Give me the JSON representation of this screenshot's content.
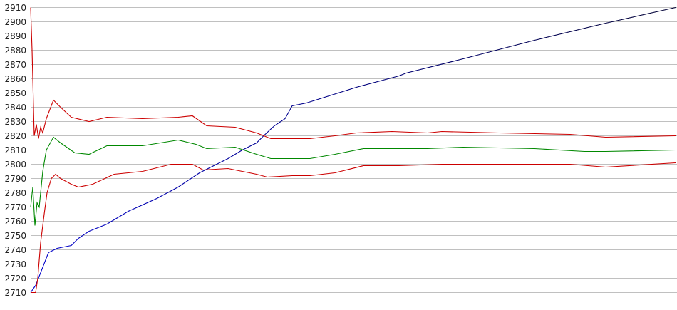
{
  "chart_data": {
    "type": "line",
    "title": "",
    "xlabel": "",
    "ylabel": "",
    "ylim": [
      2710,
      2910
    ],
    "xlim": [
      0,
      905
    ],
    "yticks": [
      2710,
      2720,
      2730,
      2740,
      2750,
      2760,
      2770,
      2780,
      2790,
      2800,
      2810,
      2820,
      2830,
      2840,
      2850,
      2860,
      2870,
      2880,
      2890,
      2900,
      2910
    ],
    "grid": "horizontal",
    "legend": "none",
    "series": [
      {
        "color": "#0000cc",
        "color_end": "#000033",
        "x": [
          0,
          7,
          25,
          37,
          57,
          67,
          82,
          107,
          137,
          177,
          207,
          237,
          257,
          277,
          297,
          317,
          327,
          342,
          357,
          367,
          387,
          457,
          517,
          527,
          607,
          707,
          807,
          905
        ],
        "y": [
          2710,
          2715,
          2738,
          2741,
          2743,
          2748,
          2753,
          2758,
          2767,
          2776,
          2784,
          2794,
          2799,
          2804,
          2810,
          2815,
          2820,
          2827,
          2832,
          2841,
          2843,
          2854,
          2862,
          2864,
          2874,
          2887,
          2899,
          2910
        ]
      },
      {
        "color": "#cc0000",
        "x": [
          0,
          2,
          5,
          8,
          11,
          14,
          17,
          22,
          32,
          42,
          57,
          82,
          107,
          157,
          207,
          227,
          247,
          287,
          317,
          337,
          392,
          427,
          457,
          507,
          557,
          577,
          657,
          757,
          807,
          905
        ],
        "y": [
          2910,
          2880,
          2820,
          2828,
          2818,
          2826,
          2822,
          2832,
          2845,
          2840,
          2833,
          2830,
          2833,
          2832,
          2833,
          2834,
          2827,
          2826,
          2822,
          2818,
          2818,
          2820,
          2822,
          2823,
          2822,
          2823,
          2822,
          2821,
          2819,
          2820
        ]
      },
      {
        "color": "#008800",
        "x": [
          0,
          3,
          6,
          9,
          12,
          17,
          22,
          32,
          42,
          62,
          82,
          107,
          157,
          207,
          232,
          247,
          287,
          317,
          337,
          392,
          427,
          467,
          557,
          607,
          707,
          777,
          807,
          905
        ],
        "y": [
          2770,
          2784,
          2757,
          2773,
          2770,
          2795,
          2810,
          2819,
          2815,
          2808,
          2807,
          2813,
          2813,
          2817,
          2814,
          2811,
          2812,
          2807,
          2804,
          2804,
          2807,
          2811,
          2811,
          2812,
          2811,
          2809,
          2809,
          2810
        ]
      },
      {
        "color": "#cc0000",
        "x": [
          0,
          7,
          10,
          14,
          19,
          23,
          29,
          35,
          42,
          57,
          67,
          87,
          117,
          157,
          197,
          227,
          242,
          277,
          317,
          332,
          367,
          392,
          427,
          467,
          517,
          577,
          657,
          757,
          807,
          905
        ],
        "y": [
          2710,
          2710,
          2720,
          2745,
          2765,
          2780,
          2790,
          2793,
          2790,
          2786,
          2784,
          2786,
          2793,
          2795,
          2800,
          2800,
          2796,
          2797,
          2793,
          2791,
          2792,
          2792,
          2794,
          2799,
          2799,
          2800,
          2800,
          2800,
          2798,
          2801
        ]
      }
    ]
  }
}
